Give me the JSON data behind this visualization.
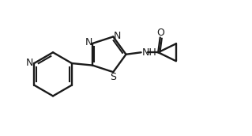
{
  "bg_color": "#ffffff",
  "line_color": "#1a1a1a",
  "line_width": 1.7,
  "fig_width": 3.19,
  "fig_height": 1.72,
  "dpi": 100,
  "font_size": 9.0,
  "xlim": [
    0,
    10
  ],
  "ylim": [
    0,
    5.4
  ]
}
